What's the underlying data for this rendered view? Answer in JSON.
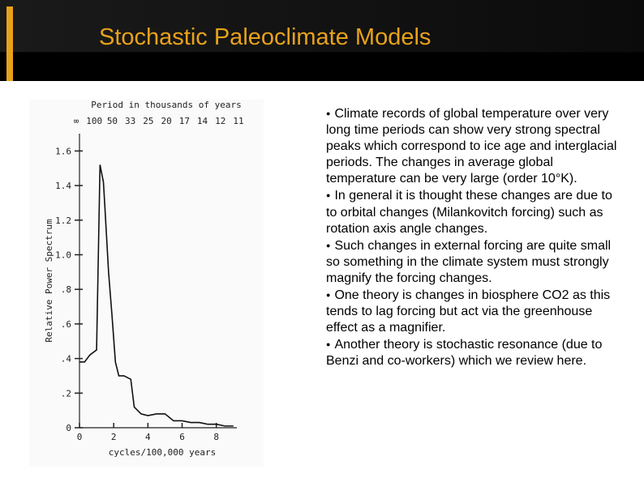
{
  "slide": {
    "title": "Stochastic Paleoclimate Models",
    "bullets": [
      "Climate records of global temperature over very long time periods can show very strong spectral peaks which correspond to ice age and interglacial periods. The changes in average global temperature can be very large (order 10°K).",
      "In general it is thought these changes are due to to orbital changes (Milankovitch forcing) such as rotation axis angle changes.",
      "Such changes in external forcing are quite small so something in the climate system must strongly magnify the forcing changes.",
      "One theory is changes in biosphere CO2 as this tends to lag forcing but act via the greenhouse effect as a magnifier.",
      "Another theory is stochastic resonance (due to Benzi and co-workers) which we review here."
    ]
  },
  "chart_data": {
    "type": "line",
    "xlabel": "cycles/100,000 years",
    "ylabel": "Relative Power Spectrum",
    "top_axis_label": "Period in thousands of years",
    "top_ticks": [
      "∞",
      "100",
      "50",
      "33",
      "25",
      "20",
      "17",
      "14",
      "12",
      "11"
    ],
    "x_ticks": [
      "0",
      "2",
      "4",
      "6",
      "8"
    ],
    "y_ticks": [
      "0",
      ".2",
      ".4",
      ".6",
      ".8",
      "1.0",
      "1.2",
      "1.4",
      "1.6"
    ],
    "xlim": [
      0,
      9.2
    ],
    "ylim": [
      0,
      1.7
    ],
    "grid": false,
    "series": [
      {
        "x": [
          0.0,
          0.3,
          0.6,
          1.0,
          1.2,
          1.4,
          1.5,
          1.7,
          1.9,
          2.1,
          2.3,
          2.6,
          3.0,
          3.2,
          3.6,
          4.0,
          4.5,
          5.0,
          5.5,
          6.0,
          6.5,
          7.0,
          7.5,
          8.0,
          8.5,
          9.0
        ],
        "y": [
          0.38,
          0.38,
          0.42,
          0.45,
          1.52,
          1.42,
          1.25,
          0.9,
          0.65,
          0.38,
          0.3,
          0.3,
          0.28,
          0.12,
          0.08,
          0.07,
          0.08,
          0.08,
          0.04,
          0.04,
          0.03,
          0.03,
          0.02,
          0.02,
          0.01,
          0.01
        ]
      }
    ]
  }
}
